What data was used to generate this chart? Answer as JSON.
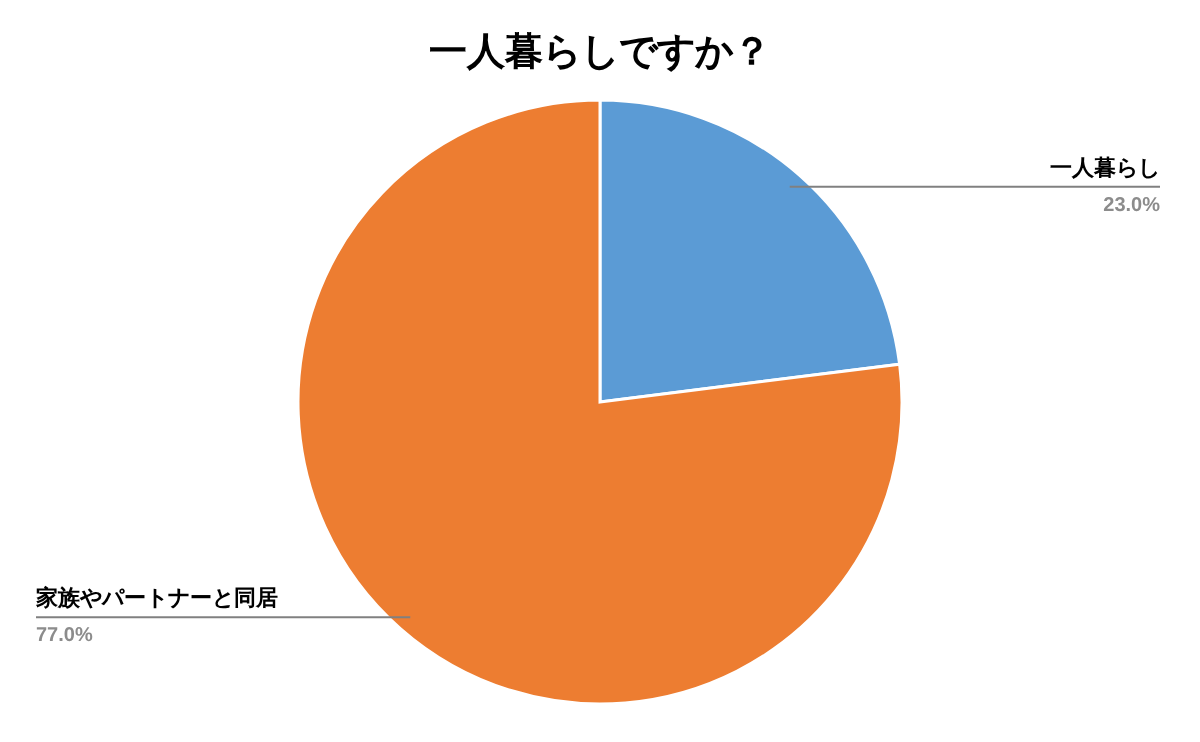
{
  "chart_data": {
    "type": "pie",
    "title": "一人暮らしですか？",
    "categories": [
      "一人暮らし",
      "家族やパートナーと同居"
    ],
    "values": [
      23.0,
      77.0
    ],
    "colors": [
      "#5b9bd5",
      "#ed7d31"
    ],
    "value_labels": [
      "23.0%",
      "77.0%"
    ],
    "legend": false
  }
}
